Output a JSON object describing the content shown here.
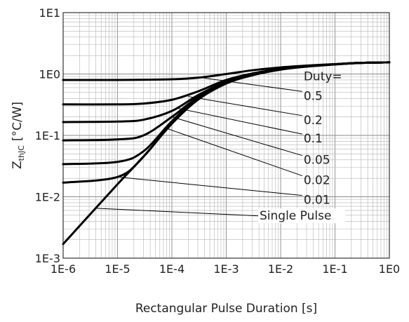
{
  "chart_data": {
    "type": "line",
    "title": "",
    "xlabel": "Rectangular Pulse Duration [s]",
    "ylabel_main": "Z",
    "ylabel_sub": "thJC",
    "ylabel_unit": "[°C/W]",
    "x_scale": "log",
    "y_scale": "log",
    "xlim": [
      1e-06,
      1
    ],
    "ylim": [
      0.001,
      10
    ],
    "grid": true,
    "x_ticks": [
      {
        "value": 1e-06,
        "label": "1E-6"
      },
      {
        "value": 1e-05,
        "label": "1E-5"
      },
      {
        "value": 0.0001,
        "label": "1E-4"
      },
      {
        "value": 0.001,
        "label": "1E-3"
      },
      {
        "value": 0.01,
        "label": "1E-2"
      },
      {
        "value": 0.1,
        "label": "1E-1"
      },
      {
        "value": 1,
        "label": "1E0"
      }
    ],
    "y_ticks": [
      {
        "value": 10,
        "label": "1E1"
      },
      {
        "value": 1,
        "label": "1E0"
      },
      {
        "value": 0.1,
        "label": "1E-1"
      },
      {
        "value": 0.01,
        "label": "1E-2"
      },
      {
        "value": 0.001,
        "label": "1E-3"
      }
    ],
    "legend_title": "Duty=",
    "series": [
      {
        "name": "0.5",
        "x": [
          1e-06,
          1e-05,
          0.0001,
          0.0003,
          0.001,
          0.003,
          0.01,
          0.03,
          0.1,
          0.3,
          1
        ],
        "y": [
          0.8,
          0.8,
          0.82,
          0.87,
          1.0,
          1.15,
          1.28,
          1.37,
          1.45,
          1.52,
          1.55
        ]
      },
      {
        "name": "0.2",
        "x": [
          1e-06,
          1e-05,
          3e-05,
          0.0001,
          0.0003,
          0.001,
          0.003,
          0.01,
          0.03,
          0.1,
          0.3,
          1
        ],
        "y": [
          0.32,
          0.32,
          0.33,
          0.38,
          0.52,
          0.8,
          1.02,
          1.22,
          1.34,
          1.44,
          1.52,
          1.55
        ]
      },
      {
        "name": "0.1",
        "x": [
          1e-06,
          1e-05,
          3e-05,
          0.0001,
          0.0003,
          0.001,
          0.003,
          0.01,
          0.03,
          0.1,
          0.3,
          1
        ],
        "y": [
          0.165,
          0.168,
          0.18,
          0.25,
          0.45,
          0.75,
          0.98,
          1.2,
          1.33,
          1.44,
          1.52,
          1.55
        ]
      },
      {
        "name": "0.05",
        "x": [
          1e-06,
          1e-05,
          3e-05,
          0.0001,
          0.0003,
          0.001,
          0.003,
          0.01,
          0.03,
          0.1,
          0.3,
          1
        ],
        "y": [
          0.083,
          0.086,
          0.1,
          0.2,
          0.42,
          0.73,
          0.97,
          1.19,
          1.33,
          1.44,
          1.52,
          1.55
        ]
      },
      {
        "name": "0.02",
        "x": [
          1e-06,
          1e-05,
          3e-05,
          0.0001,
          0.0003,
          0.001,
          0.003,
          0.01,
          0.03,
          0.1,
          0.3,
          1
        ],
        "y": [
          0.034,
          0.037,
          0.055,
          0.17,
          0.4,
          0.72,
          0.96,
          1.19,
          1.33,
          1.44,
          1.52,
          1.55
        ]
      },
      {
        "name": "0.01",
        "x": [
          1e-06,
          1e-05,
          3e-05,
          0.0001,
          0.0003,
          0.001,
          0.003,
          0.01,
          0.03,
          0.1,
          0.3,
          1
        ],
        "y": [
          0.017,
          0.021,
          0.045,
          0.16,
          0.39,
          0.71,
          0.96,
          1.19,
          1.33,
          1.44,
          1.52,
          1.55
        ]
      },
      {
        "name": "Single Pulse",
        "x": [
          1e-06,
          1e-05,
          3e-05,
          0.0001,
          0.0003,
          0.001,
          0.003,
          0.01,
          0.03,
          0.1,
          0.3,
          1
        ],
        "y": [
          0.0017,
          0.016,
          0.045,
          0.155,
          0.38,
          0.7,
          0.95,
          1.18,
          1.32,
          1.43,
          1.52,
          1.55
        ]
      }
    ],
    "annotations": [
      {
        "text": "0.5",
        "from": [
          0.00035,
          0.87
        ],
        "to_label": [
          0.025,
          0.52
        ]
      },
      {
        "text": "0.2",
        "from": [
          0.0002,
          0.43
        ],
        "to_label": [
          0.025,
          0.21
        ]
      },
      {
        "text": "0.1",
        "from": [
          0.00012,
          0.28
        ],
        "to_label": [
          0.025,
          0.105
        ]
      },
      {
        "text": "0.05",
        "from": [
          0.0001,
          0.2
        ],
        "to_label": [
          0.025,
          0.047
        ]
      },
      {
        "text": "0.02",
        "from": [
          8e-05,
          0.13
        ],
        "to_label": [
          0.025,
          0.022
        ]
      },
      {
        "text": "0.01",
        "from": [
          1e-05,
          0.021
        ],
        "to_label": [
          0.025,
          0.0105
        ]
      },
      {
        "text": "Single Pulse",
        "from": [
          4e-06,
          0.0065
        ],
        "to_label": [
          0.01,
          0.0047
        ]
      }
    ]
  }
}
